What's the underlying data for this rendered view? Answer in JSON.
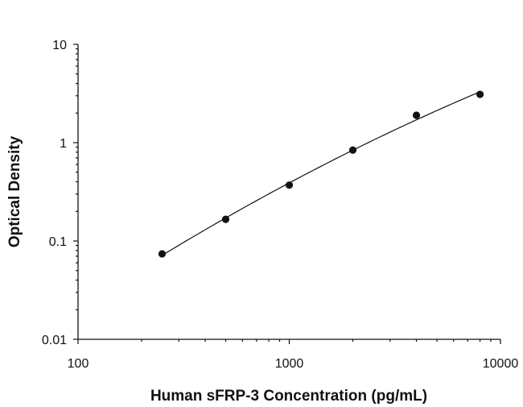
{
  "chart_data": {
    "type": "scatter",
    "title": "",
    "xlabel": "Human sFRP-3 Concentration (pg/mL)",
    "ylabel": "Optical Density",
    "xscale": "log",
    "yscale": "log",
    "xlim": [
      100,
      10000
    ],
    "ylim": [
      0.01,
      10
    ],
    "x_ticks": [
      "100",
      "1000",
      "10000"
    ],
    "y_ticks": [
      "0.01",
      "0.1",
      "1",
      "10"
    ],
    "grid": false,
    "legend": "none",
    "series": [
      {
        "points": [
          {
            "x": 250,
            "y": 0.074
          },
          {
            "x": 500,
            "y": 0.166
          },
          {
            "x": 1000,
            "y": 0.37
          },
          {
            "x": 2000,
            "y": 0.84
          },
          {
            "x": 4000,
            "y": 1.9
          },
          {
            "x": 8000,
            "y": 3.1
          }
        ],
        "fit": "four-parameter logistic curve",
        "fit_range": [
          250,
          8000
        ]
      }
    ],
    "colors": {
      "points": "#111111",
      "curve": "#111111",
      "axis": "#111111"
    }
  }
}
